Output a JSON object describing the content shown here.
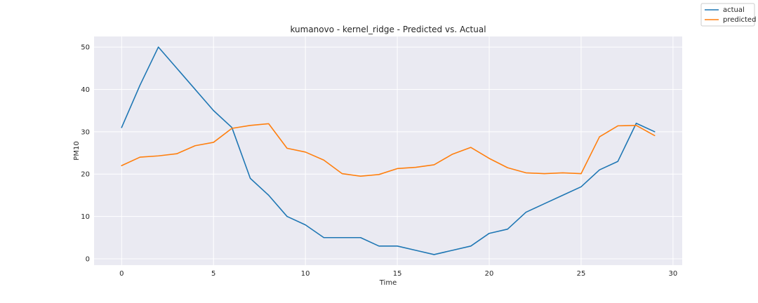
{
  "chart_data": {
    "type": "line",
    "title": "kumanovo - kernel_ridge - Predicted vs. Actual",
    "xlabel": "Time",
    "ylabel": "PM10",
    "xlim": [
      -1.5,
      30.5
    ],
    "ylim": [
      -1.5,
      52.5
    ],
    "xticks": [
      0,
      5,
      10,
      15,
      20,
      25,
      30
    ],
    "yticks": [
      0,
      10,
      20,
      30,
      40,
      50
    ],
    "grid": true,
    "legend_position": "top-right (figure)",
    "x": [
      0,
      1,
      2,
      3,
      4,
      5,
      6,
      7,
      8,
      9,
      10,
      11,
      12,
      13,
      14,
      15,
      16,
      17,
      18,
      19,
      20,
      21,
      22,
      23,
      24,
      25,
      26,
      27,
      28,
      29
    ],
    "series": [
      {
        "name": "actual",
        "color": "#1f77b4",
        "values": [
          31,
          41,
          50,
          45,
          40,
          35,
          31,
          19,
          15,
          10,
          8,
          5,
          5,
          5,
          3,
          3,
          2,
          1,
          2,
          3,
          6,
          7,
          11,
          13,
          15,
          17,
          21,
          23,
          32,
          30
        ]
      },
      {
        "name": "predicted",
        "color": "#ff7f0e",
        "values": [
          22,
          24,
          24.3,
          24.8,
          26.7,
          27.5,
          30.8,
          31.5,
          31.9,
          26.1,
          25.2,
          23.3,
          20.1,
          19.5,
          19.9,
          21.3,
          21.6,
          22.2,
          24.7,
          26.3,
          23.7,
          21.5,
          20.3,
          20.1,
          20.3,
          20.1,
          28.8,
          31.4,
          31.5,
          29.1
        ]
      }
    ]
  }
}
